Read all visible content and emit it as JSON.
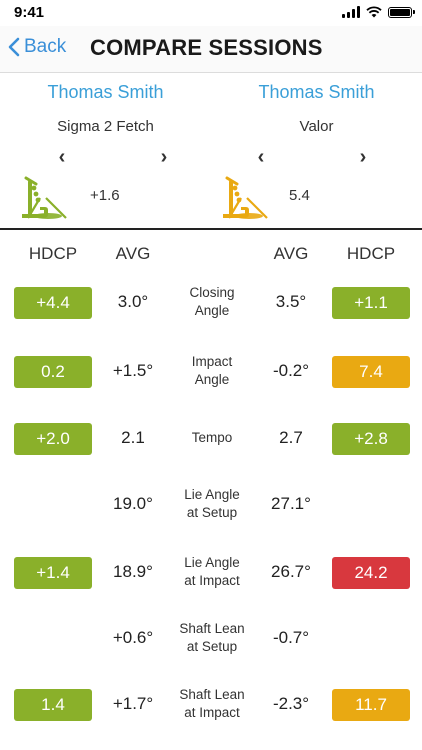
{
  "status": {
    "time": "9:41"
  },
  "nav": {
    "back_label": "Back",
    "title": "COMPARE SESSIONS"
  },
  "left": {
    "name": "Thomas Smith",
    "putter": "Sigma 2 Fetch",
    "stroke_value": "+1.6",
    "icon_color": "#8ab02a"
  },
  "right": {
    "name": "Thomas Smith",
    "putter": "Valor",
    "stroke_value": "5.4",
    "icon_color": "#e9a912"
  },
  "headers": {
    "hdcp_left": "HDCP",
    "avg_left": "AVG",
    "avg_right": "AVG",
    "hdcp_right": "HDCP"
  },
  "colors": {
    "green": "#8ab02a",
    "orange": "#e9a912",
    "red": "#d8383e",
    "link": "#3a9fd8"
  },
  "rows": [
    {
      "metric_line1": "Closing",
      "metric_line2": "Angle",
      "left_hdcp": "+4.4",
      "left_color": "green",
      "left_avg": "3.0°",
      "right_avg": "3.5°",
      "right_hdcp": "+1.1",
      "right_color": "green"
    },
    {
      "metric_line1": "Impact",
      "metric_line2": "Angle",
      "left_hdcp": "0.2",
      "left_color": "green",
      "left_avg": "+1.5°",
      "right_avg": "-0.2°",
      "right_hdcp": "7.4",
      "right_color": "orange"
    },
    {
      "metric_line1": "Tempo",
      "metric_line2": "",
      "left_hdcp": "+2.0",
      "left_color": "green",
      "left_avg": "2.1",
      "right_avg": "2.7",
      "right_hdcp": "+2.8",
      "right_color": "green"
    },
    {
      "metric_line1": "Lie Angle",
      "metric_line2": "at Setup",
      "left_hdcp": "",
      "left_color": "",
      "left_avg": "19.0°",
      "right_avg": "27.1°",
      "right_hdcp": "",
      "right_color": ""
    },
    {
      "metric_line1": "Lie Angle",
      "metric_line2": "at Impact",
      "left_hdcp": "+1.4",
      "left_color": "green",
      "left_avg": "18.9°",
      "right_avg": "26.7°",
      "right_hdcp": "24.2",
      "right_color": "red"
    },
    {
      "metric_line1": "Shaft Lean",
      "metric_line2": "at Setup",
      "left_hdcp": "",
      "left_color": "",
      "left_avg": "+0.6°",
      "right_avg": "-0.7°",
      "right_hdcp": "",
      "right_color": ""
    },
    {
      "metric_line1": "Shaft Lean",
      "metric_line2": "at Impact",
      "left_hdcp": "1.4",
      "left_color": "green",
      "left_avg": "+1.7°",
      "right_avg": "-2.3°",
      "right_hdcp": "11.7",
      "right_color": "orange"
    }
  ]
}
